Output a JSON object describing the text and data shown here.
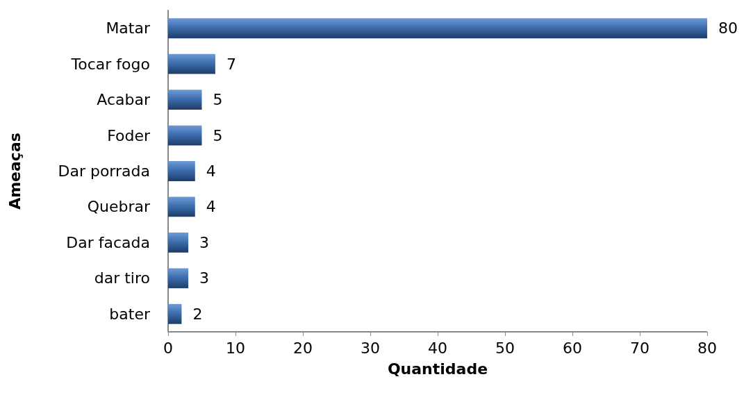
{
  "chart_data": {
    "type": "bar",
    "orientation": "horizontal",
    "xlabel": "Quantidade",
    "ylabel": "Ameaças",
    "categories": [
      "Matar",
      "Tocar fogo",
      "Acabar",
      "Foder",
      "Dar porrada",
      "Quebrar",
      "Dar facada",
      "dar tiro",
      "bater"
    ],
    "values": [
      80,
      7,
      5,
      5,
      4,
      4,
      3,
      3,
      2
    ],
    "color": "#3e6fb0",
    "xlim": [
      0,
      80
    ],
    "xticks": [
      0,
      10,
      20,
      30,
      40,
      50,
      60,
      70,
      80
    ],
    "data_labels": true
  }
}
